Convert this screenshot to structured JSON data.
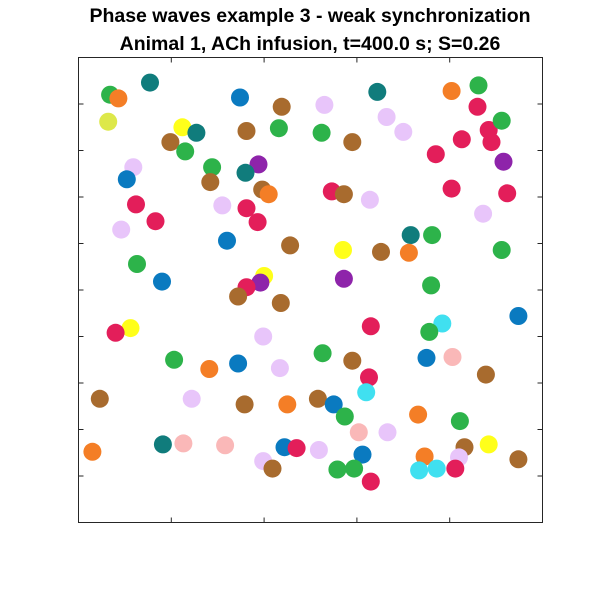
{
  "chart_data": {
    "type": "scatter",
    "title": "Phase waves example 3 - weak synchronization",
    "subtitle": "Animal 1, ACh infusion, t=400.0 s; S=0.26",
    "xlabel": "",
    "ylabel": "",
    "xlim": [
      0,
      50
    ],
    "ylim": [
      0,
      50
    ],
    "grid": false,
    "xticks": [
      0,
      10,
      20,
      30,
      40,
      50
    ],
    "yticks": [
      5,
      10,
      15,
      20,
      25,
      30,
      35,
      40,
      45
    ],
    "points": [
      {
        "x": 7.7,
        "y": 47.3,
        "color": "#107C7C"
      },
      {
        "x": 3.4,
        "y": 46.0,
        "color": "#2DB34A"
      },
      {
        "x": 4.3,
        "y": 45.6,
        "color": "#F47E26"
      },
      {
        "x": 17.4,
        "y": 45.7,
        "color": "#0A7AC0"
      },
      {
        "x": 21.9,
        "y": 44.7,
        "color": "#A86B2E"
      },
      {
        "x": 26.5,
        "y": 44.9,
        "color": "#E8C5FA"
      },
      {
        "x": 32.2,
        "y": 46.3,
        "color": "#107C7C"
      },
      {
        "x": 40.2,
        "y": 46.4,
        "color": "#F47E26"
      },
      {
        "x": 43.1,
        "y": 47.0,
        "color": "#2DB34A"
      },
      {
        "x": 43.0,
        "y": 44.7,
        "color": "#E31E5A"
      },
      {
        "x": 3.2,
        "y": 43.1,
        "color": "#DDE84A"
      },
      {
        "x": 11.2,
        "y": 42.5,
        "color": "#FFFF1A"
      },
      {
        "x": 12.7,
        "y": 41.9,
        "color": "#107C7C"
      },
      {
        "x": 18.1,
        "y": 42.1,
        "color": "#A86B2E"
      },
      {
        "x": 21.6,
        "y": 42.4,
        "color": "#2DB34A"
      },
      {
        "x": 26.2,
        "y": 41.9,
        "color": "#2DB34A"
      },
      {
        "x": 33.2,
        "y": 43.6,
        "color": "#E8C5FA"
      },
      {
        "x": 35.0,
        "y": 42.0,
        "color": "#E8C5FA"
      },
      {
        "x": 44.2,
        "y": 42.2,
        "color": "#E31E5A"
      },
      {
        "x": 45.6,
        "y": 43.2,
        "color": "#2DB34A"
      },
      {
        "x": 9.9,
        "y": 40.9,
        "color": "#A86B2E"
      },
      {
        "x": 11.5,
        "y": 39.9,
        "color": "#2DB34A"
      },
      {
        "x": 29.5,
        "y": 40.9,
        "color": "#A86B2E"
      },
      {
        "x": 41.3,
        "y": 41.2,
        "color": "#E31E5A"
      },
      {
        "x": 44.5,
        "y": 40.9,
        "color": "#E31E5A"
      },
      {
        "x": 38.5,
        "y": 39.6,
        "color": "#E31E5A"
      },
      {
        "x": 45.8,
        "y": 38.8,
        "color": "#8E24AA"
      },
      {
        "x": 5.9,
        "y": 38.2,
        "color": "#E8C5FA"
      },
      {
        "x": 5.2,
        "y": 36.9,
        "color": "#0A7AC0"
      },
      {
        "x": 14.4,
        "y": 38.2,
        "color": "#2DB34A"
      },
      {
        "x": 19.4,
        "y": 38.5,
        "color": "#8E24AA"
      },
      {
        "x": 18.0,
        "y": 37.6,
        "color": "#107C7C"
      },
      {
        "x": 14.2,
        "y": 36.6,
        "color": "#A86B2E"
      },
      {
        "x": 19.8,
        "y": 35.8,
        "color": "#A86B2E"
      },
      {
        "x": 20.5,
        "y": 35.3,
        "color": "#F47E26"
      },
      {
        "x": 27.3,
        "y": 35.6,
        "color": "#E31E5A"
      },
      {
        "x": 28.6,
        "y": 35.3,
        "color": "#A86B2E"
      },
      {
        "x": 31.4,
        "y": 34.7,
        "color": "#E8C5FA"
      },
      {
        "x": 40.2,
        "y": 35.9,
        "color": "#E31E5A"
      },
      {
        "x": 46.2,
        "y": 35.4,
        "color": "#E31E5A"
      },
      {
        "x": 6.2,
        "y": 34.2,
        "color": "#E31E5A"
      },
      {
        "x": 15.5,
        "y": 34.1,
        "color": "#E8C5FA"
      },
      {
        "x": 18.1,
        "y": 33.8,
        "color": "#E31E5A"
      },
      {
        "x": 8.3,
        "y": 32.4,
        "color": "#E31E5A"
      },
      {
        "x": 19.3,
        "y": 32.3,
        "color": "#E31E5A"
      },
      {
        "x": 43.6,
        "y": 33.2,
        "color": "#E8C5FA"
      },
      {
        "x": 4.6,
        "y": 31.5,
        "color": "#E8C5FA"
      },
      {
        "x": 16.0,
        "y": 30.3,
        "color": "#0A7AC0"
      },
      {
        "x": 22.8,
        "y": 29.8,
        "color": "#A86B2E"
      },
      {
        "x": 28.5,
        "y": 29.3,
        "color": "#FFFF1A"
      },
      {
        "x": 32.6,
        "y": 29.1,
        "color": "#A86B2E"
      },
      {
        "x": 35.8,
        "y": 30.9,
        "color": "#107C7C"
      },
      {
        "x": 38.1,
        "y": 30.9,
        "color": "#2DB34A"
      },
      {
        "x": 35.6,
        "y": 29.0,
        "color": "#F47E26"
      },
      {
        "x": 45.6,
        "y": 29.3,
        "color": "#2DB34A"
      },
      {
        "x": 6.3,
        "y": 27.8,
        "color": "#2DB34A"
      },
      {
        "x": 20.0,
        "y": 26.5,
        "color": "#FFFF1A"
      },
      {
        "x": 19.6,
        "y": 25.8,
        "color": "#8E24AA"
      },
      {
        "x": 18.1,
        "y": 25.3,
        "color": "#E31E5A"
      },
      {
        "x": 28.6,
        "y": 26.2,
        "color": "#8E24AA"
      },
      {
        "x": 9.0,
        "y": 25.9,
        "color": "#0A7AC0"
      },
      {
        "x": 17.2,
        "y": 24.3,
        "color": "#A86B2E"
      },
      {
        "x": 21.8,
        "y": 23.6,
        "color": "#A86B2E"
      },
      {
        "x": 38.0,
        "y": 25.5,
        "color": "#2DB34A"
      },
      {
        "x": 47.4,
        "y": 22.2,
        "color": "#0A7AC0"
      },
      {
        "x": 5.6,
        "y": 20.9,
        "color": "#FFFF1A"
      },
      {
        "x": 4.0,
        "y": 20.4,
        "color": "#E31E5A"
      },
      {
        "x": 19.9,
        "y": 20.0,
        "color": "#E8C5FA"
      },
      {
        "x": 31.5,
        "y": 21.1,
        "color": "#E31E5A"
      },
      {
        "x": 39.2,
        "y": 21.4,
        "color": "#40E0F0"
      },
      {
        "x": 37.8,
        "y": 20.5,
        "color": "#2DB34A"
      },
      {
        "x": 10.3,
        "y": 17.5,
        "color": "#2DB34A"
      },
      {
        "x": 17.2,
        "y": 17.1,
        "color": "#0A7AC0"
      },
      {
        "x": 26.3,
        "y": 18.2,
        "color": "#2DB34A"
      },
      {
        "x": 29.5,
        "y": 17.4,
        "color": "#A86B2E"
      },
      {
        "x": 37.5,
        "y": 17.7,
        "color": "#0A7AC0"
      },
      {
        "x": 40.3,
        "y": 17.8,
        "color": "#FAB8B8"
      },
      {
        "x": 14.1,
        "y": 16.5,
        "color": "#F47E26"
      },
      {
        "x": 21.7,
        "y": 16.6,
        "color": "#E8C5FA"
      },
      {
        "x": 43.9,
        "y": 15.9,
        "color": "#A86B2E"
      },
      {
        "x": 31.3,
        "y": 15.6,
        "color": "#E31E5A"
      },
      {
        "x": 2.3,
        "y": 13.3,
        "color": "#A86B2E"
      },
      {
        "x": 12.2,
        "y": 13.3,
        "color": "#E8C5FA"
      },
      {
        "x": 17.9,
        "y": 12.7,
        "color": "#A86B2E"
      },
      {
        "x": 22.5,
        "y": 12.7,
        "color": "#F47E26"
      },
      {
        "x": 25.8,
        "y": 13.3,
        "color": "#A86B2E"
      },
      {
        "x": 27.5,
        "y": 12.7,
        "color": "#0A7AC0"
      },
      {
        "x": 31.0,
        "y": 14.0,
        "color": "#40E0F0"
      },
      {
        "x": 28.7,
        "y": 11.4,
        "color": "#2DB34A"
      },
      {
        "x": 36.6,
        "y": 11.6,
        "color": "#F47E26"
      },
      {
        "x": 41.1,
        "y": 10.9,
        "color": "#2DB34A"
      },
      {
        "x": 30.2,
        "y": 9.7,
        "color": "#FAB8B8"
      },
      {
        "x": 33.3,
        "y": 9.7,
        "color": "#E8C5FA"
      },
      {
        "x": 9.1,
        "y": 8.4,
        "color": "#107C7C"
      },
      {
        "x": 11.3,
        "y": 8.5,
        "color": "#FAB8B8"
      },
      {
        "x": 15.8,
        "y": 8.3,
        "color": "#FAB8B8"
      },
      {
        "x": 22.2,
        "y": 8.1,
        "color": "#0A7AC0"
      },
      {
        "x": 23.5,
        "y": 8.0,
        "color": "#E31E5A"
      },
      {
        "x": 25.9,
        "y": 7.8,
        "color": "#E8C5FA"
      },
      {
        "x": 41.6,
        "y": 8.1,
        "color": "#A86B2E"
      },
      {
        "x": 44.2,
        "y": 8.4,
        "color": "#FFFF1A"
      },
      {
        "x": 1.5,
        "y": 7.6,
        "color": "#F47E26"
      },
      {
        "x": 30.6,
        "y": 7.3,
        "color": "#0A7AC0"
      },
      {
        "x": 37.3,
        "y": 7.1,
        "color": "#F47E26"
      },
      {
        "x": 41.0,
        "y": 7.0,
        "color": "#E8C5FA"
      },
      {
        "x": 47.4,
        "y": 6.8,
        "color": "#A86B2E"
      },
      {
        "x": 19.9,
        "y": 6.6,
        "color": "#E8C5FA"
      },
      {
        "x": 20.9,
        "y": 5.8,
        "color": "#A86B2E"
      },
      {
        "x": 27.9,
        "y": 5.7,
        "color": "#2DB34A"
      },
      {
        "x": 29.7,
        "y": 5.8,
        "color": "#2DB34A"
      },
      {
        "x": 36.7,
        "y": 5.6,
        "color": "#40E0F0"
      },
      {
        "x": 38.6,
        "y": 5.8,
        "color": "#40E0F0"
      },
      {
        "x": 40.6,
        "y": 5.8,
        "color": "#E31E5A"
      },
      {
        "x": 31.5,
        "y": 4.4,
        "color": "#E31E5A"
      }
    ]
  }
}
